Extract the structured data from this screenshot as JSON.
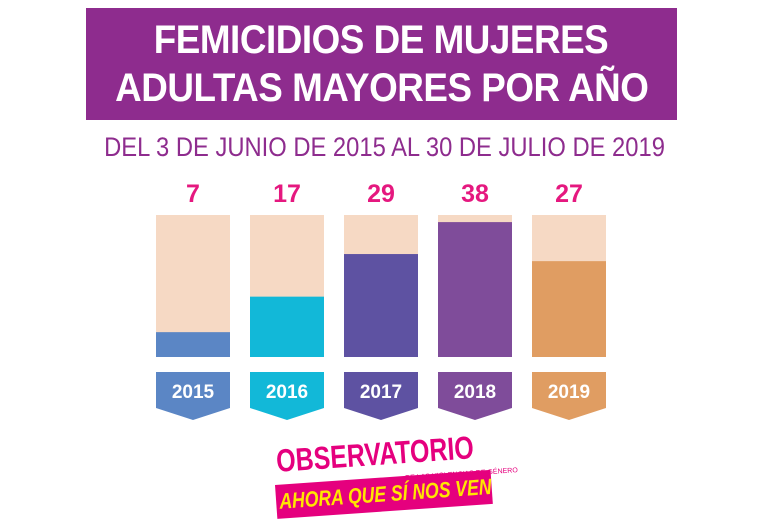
{
  "header": {
    "title_line1": "FEMICIDIOS DE MUJERES",
    "title_line2": "ADULTAS MAYORES POR AÑO",
    "subtitle": "DEL 3 DE JUNIO DE 2015 AL 30 DE JULIO DE 2019"
  },
  "colors": {
    "title_bg": "#8e2c8e",
    "value_label": "#e5187f",
    "bar_track": "#f6d9c4"
  },
  "chart_data": {
    "type": "bar",
    "categories": [
      "2015",
      "2016",
      "2017",
      "2018",
      "2019"
    ],
    "values": [
      7,
      17,
      29,
      38,
      27
    ],
    "ylim": [
      0,
      40
    ],
    "bar_colors": [
      "#5b86c5",
      "#12b8d8",
      "#5e52a2",
      "#7f4c9a",
      "#e09d62"
    ],
    "label_colors": [
      "#5b86c5",
      "#12b8d8",
      "#5e52a2",
      "#7f4c9a",
      "#e09d62"
    ],
    "grid": false,
    "legend": "none"
  },
  "logo": {
    "main": "OBSERVATORIO",
    "sub": "DE LAS VIOLENCIAS DE GÉNERO",
    "slogan": "AHORA QUE SÍ NOS VEN"
  }
}
